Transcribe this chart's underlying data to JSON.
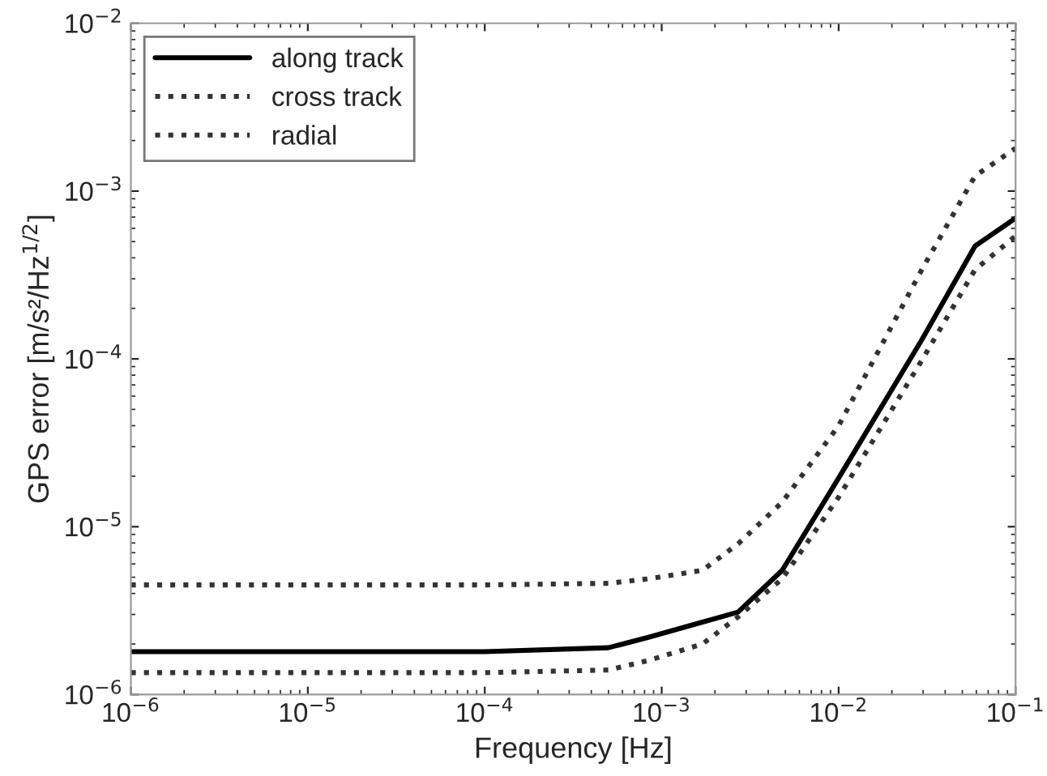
{
  "chart_data": {
    "type": "line",
    "xlabel": "Frequency [Hz]",
    "ylabel": "GPS error [m/s²/Hz$^{1/2}$]",
    "log": "xy",
    "grid": false,
    "legend": "top left",
    "marker": "none",
    "xlim": [
      1e-06,
      0.1
    ],
    "ylim": [
      1e-06,
      0.01
    ],
    "xticks": [
      {
        "value": 1e-06,
        "label": "10$^{−6}$"
      },
      {
        "value": 1e-05,
        "label": "10$^{−5}$"
      },
      {
        "value": 0.0001,
        "label": "10$^{−4}$"
      },
      {
        "value": 0.001,
        "label": "10$^{−3}$"
      },
      {
        "value": 0.01,
        "label": "10$^{−2}$"
      },
      {
        "value": 0.1,
        "label": "10$^{−1}$"
      }
    ],
    "yticks": [
      {
        "value": 1e-06,
        "label": "10$^{−6}$"
      },
      {
        "value": 1e-05,
        "label": "10$^{−5}$"
      },
      {
        "value": 0.0001,
        "label": "10$^{−4}$"
      },
      {
        "value": 0.001,
        "label": "10$^{−3}$"
      },
      {
        "value": 0.01,
        "label": "10$^{−2}$"
      }
    ],
    "x": [
      1e-06,
      1e-05,
      0.0001,
      0.0005,
      0.00085,
      0.0017,
      0.0027,
      0.0048,
      0.01,
      0.0295,
      0.059,
      0.1
    ],
    "series": [
      {
        "name": "along track",
        "color": "#000000",
        "line_style": "solid",
        "values": [
          1.8e-06,
          1.8e-06,
          1.8e-06,
          1.9e-06,
          2.2e-06,
          2.7e-06,
          3.1e-06,
          5.5e-06,
          1.95e-05,
          0.00013,
          0.00047,
          0.00069
        ]
      },
      {
        "name": "cross track",
        "color": "#333333",
        "line_style": "dotted",
        "values": [
          1.35e-06,
          1.35e-06,
          1.35e-06,
          1.4e-06,
          1.6e-06,
          2e-06,
          2.9e-06,
          4.9e-06,
          1.5e-05,
          9.8e-05,
          0.00034,
          0.00054
        ]
      },
      {
        "name": "radial",
        "color": "#333333",
        "line_style": "dotted",
        "values": [
          4.5e-06,
          4.5e-06,
          4.5e-06,
          4.6e-06,
          4.9e-06,
          5.5e-06,
          7.9e-06,
          1.4e-05,
          4e-05,
          0.00034,
          0.00123,
          0.0018
        ]
      }
    ]
  }
}
